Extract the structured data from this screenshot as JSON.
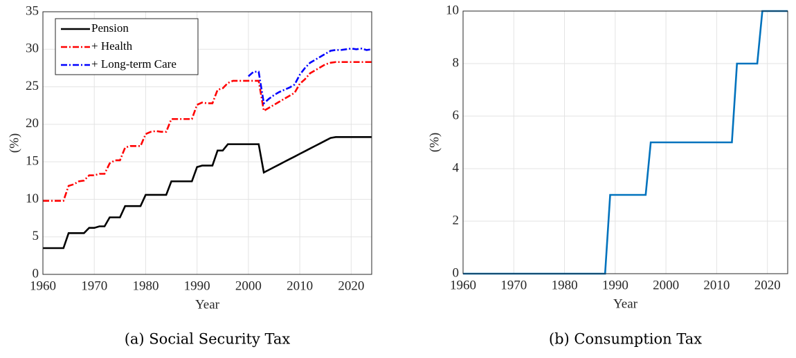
{
  "chart_data": [
    {
      "type": "line",
      "xlabel": "Year",
      "ylabel": "(%)",
      "caption": "(a) Social Security Tax",
      "x": [
        1960,
        1961,
        1962,
        1963,
        1964,
        1965,
        1966,
        1967,
        1968,
        1969,
        1970,
        1971,
        1972,
        1973,
        1974,
        1975,
        1976,
        1977,
        1978,
        1979,
        1980,
        1981,
        1982,
        1983,
        1984,
        1985,
        1986,
        1987,
        1988,
        1989,
        1990,
        1991,
        1992,
        1993,
        1994,
        1995,
        1996,
        1997,
        1998,
        1999,
        2000,
        2001,
        2002,
        2003,
        2004,
        2005,
        2006,
        2007,
        2008,
        2009,
        2010,
        2011,
        2012,
        2013,
        2014,
        2015,
        2016,
        2017,
        2018,
        2019,
        2020,
        2021,
        2022,
        2023,
        2024
      ],
      "series": [
        {
          "name": "Pension",
          "color": "#000000",
          "dash": "solid",
          "values": [
            3.5,
            3.5,
            3.5,
            3.5,
            3.5,
            5.5,
            5.5,
            5.5,
            5.5,
            6.2,
            6.2,
            6.4,
            6.4,
            7.6,
            7.6,
            7.6,
            9.1,
            9.1,
            9.1,
            9.1,
            10.6,
            10.6,
            10.6,
            10.6,
            10.6,
            12.4,
            12.4,
            12.4,
            12.4,
            12.4,
            14.3,
            14.5,
            14.5,
            14.5,
            16.5,
            16.5,
            17.35,
            17.35,
            17.35,
            17.35,
            17.35,
            17.35,
            17.35,
            13.58,
            13.93,
            14.29,
            14.64,
            15.0,
            15.35,
            15.7,
            16.06,
            16.41,
            16.77,
            17.12,
            17.47,
            17.83,
            18.18,
            18.3,
            18.3,
            18.3,
            18.3,
            18.3,
            18.3,
            18.3,
            18.3
          ]
        },
        {
          "name": "+ Health",
          "color": "#ff0000",
          "dash": "dashdot",
          "values": [
            9.8,
            9.8,
            9.8,
            9.8,
            9.8,
            11.8,
            12.0,
            12.4,
            12.5,
            13.2,
            13.2,
            13.4,
            13.4,
            14.8,
            15.2,
            15.2,
            16.9,
            17.1,
            17.1,
            17.1,
            18.7,
            19.0,
            19.1,
            19.0,
            19.0,
            20.7,
            20.7,
            20.7,
            20.7,
            20.7,
            22.6,
            22.9,
            22.8,
            22.8,
            24.6,
            24.8,
            25.5,
            25.8,
            25.8,
            25.8,
            25.8,
            25.8,
            25.8,
            21.8,
            22.2,
            22.6,
            23.0,
            23.4,
            23.8,
            24.2,
            25.4,
            26.0,
            26.8,
            27.2,
            27.6,
            28.0,
            28.2,
            28.3,
            28.3,
            28.3,
            28.3,
            28.3,
            28.3,
            28.3,
            28.3
          ]
        },
        {
          "name": "+ Long-term Care",
          "color": "#0000ff",
          "dash": "dashdot",
          "values": [
            null,
            null,
            null,
            null,
            null,
            null,
            null,
            null,
            null,
            null,
            null,
            null,
            null,
            null,
            null,
            null,
            null,
            null,
            null,
            null,
            null,
            null,
            null,
            null,
            null,
            null,
            null,
            null,
            null,
            null,
            null,
            null,
            null,
            null,
            null,
            null,
            null,
            null,
            null,
            null,
            26.4,
            27.0,
            27.0,
            22.8,
            23.4,
            23.9,
            24.3,
            24.6,
            24.9,
            25.3,
            26.6,
            27.5,
            28.2,
            28.6,
            29.0,
            29.4,
            29.8,
            29.9,
            29.9,
            30.0,
            30.1,
            30.0,
            30.1,
            29.9,
            30.0
          ]
        }
      ],
      "xlim": [
        1960,
        2024
      ],
      "xticks": [
        1960,
        1970,
        1980,
        1990,
        2000,
        2010,
        2020
      ],
      "ylim": [
        0,
        35
      ],
      "yticks": [
        0,
        5,
        10,
        15,
        20,
        25,
        30,
        35
      ],
      "grid": true,
      "legend": "upper left"
    },
    {
      "type": "line",
      "xlabel": "Year",
      "ylabel": "(%)",
      "caption": "(b) Consumption Tax",
      "x": [
        1960,
        1988,
        1989,
        1996,
        1997,
        2013,
        2014,
        2018,
        2019,
        2024
      ],
      "series": [
        {
          "color": "#0072bd",
          "dash": "solid",
          "values": [
            0,
            0,
            3,
            3,
            5,
            5,
            8,
            8,
            10,
            10
          ]
        }
      ],
      "xlim": [
        1960,
        2024
      ],
      "xticks": [
        1960,
        1970,
        1980,
        1990,
        2000,
        2010,
        2020
      ],
      "ylim": [
        0,
        10
      ],
      "yticks": [
        0,
        2,
        4,
        6,
        8,
        10
      ],
      "grid": true
    }
  ]
}
